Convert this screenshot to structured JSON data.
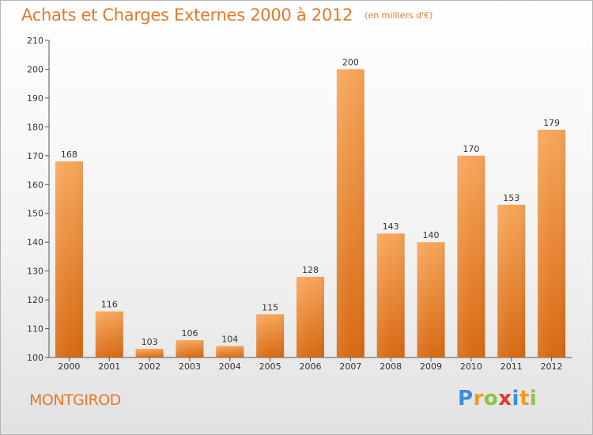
{
  "chart_data": {
    "type": "bar",
    "title": "Achats et Charges Externes 2000 à 2012",
    "subtitle": "(en milliers d'€)",
    "categories": [
      "2000",
      "2001",
      "2002",
      "2003",
      "2004",
      "2005",
      "2006",
      "2007",
      "2008",
      "2009",
      "2010",
      "2011",
      "2012"
    ],
    "values": [
      168,
      116,
      103,
      106,
      104,
      115,
      128,
      200,
      143,
      140,
      170,
      153,
      179
    ],
    "ylim": [
      100,
      210
    ],
    "yticks": [
      100,
      110,
      120,
      130,
      140,
      150,
      160,
      170,
      180,
      190,
      200,
      210
    ],
    "grid": false,
    "bar_color_top": "#f7a65a",
    "bar_color_bottom": "#d86a12"
  },
  "commune": "MONTGIROD",
  "logo": {
    "letters": [
      "P",
      "r",
      "o",
      "x",
      "i",
      "t",
      "i"
    ],
    "colors": [
      "#3b8fd4",
      "#f29a1f",
      "#8cc43f",
      "#e23a2e",
      "#3b8fd4",
      "#f29a1f",
      "#8cc43f"
    ]
  },
  "theme": {
    "accent": "#e2792b"
  }
}
